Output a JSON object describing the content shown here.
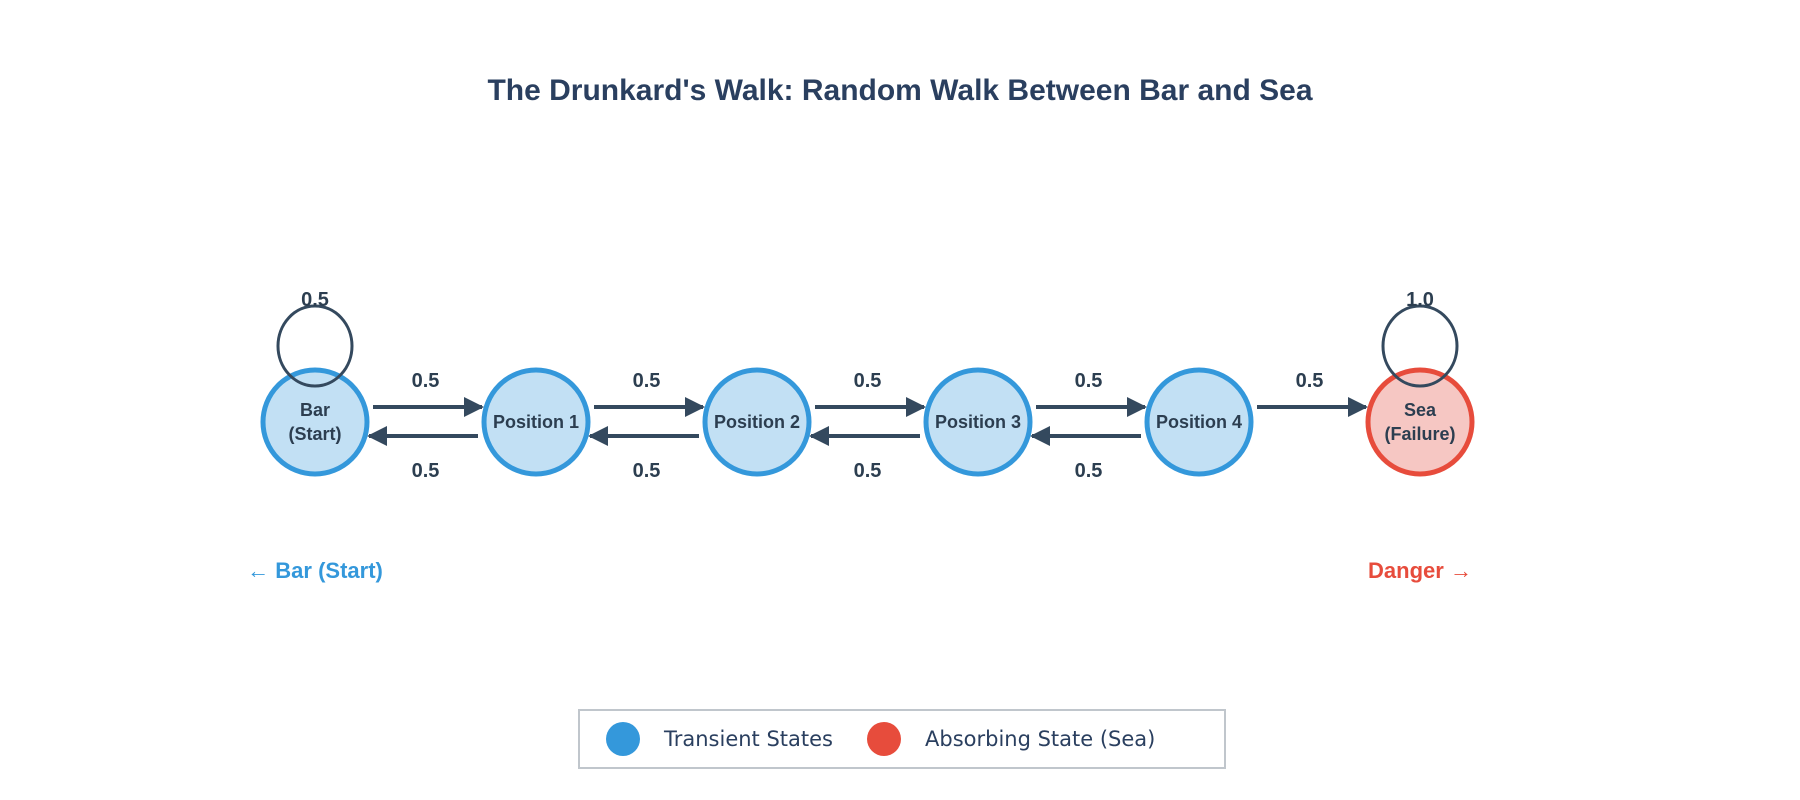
{
  "title": "The Drunkard's Walk: Random Walk Between Bar and Sea",
  "colors": {
    "transient_fill": "#c2e0f4",
    "transient_stroke": "#3498db",
    "absorbing_fill": "#f6c7c3",
    "absorbing_stroke": "#e74c3c",
    "edge": "#34495e",
    "text": "#2c3e50"
  },
  "nodes": [
    {
      "id": "bar",
      "lines": [
        "Bar",
        "(Start)"
      ],
      "type": "transient"
    },
    {
      "id": "p1",
      "lines": [
        "Position 1"
      ],
      "type": "transient"
    },
    {
      "id": "p2",
      "lines": [
        "Position 2"
      ],
      "type": "transient"
    },
    {
      "id": "p3",
      "lines": [
        "Position 3"
      ],
      "type": "transient"
    },
    {
      "id": "p4",
      "lines": [
        "Position 4"
      ],
      "type": "transient"
    },
    {
      "id": "sea",
      "lines": [
        "Sea",
        "(Failure)"
      ],
      "type": "absorbing"
    }
  ],
  "edges": [
    {
      "from": "bar",
      "to": "bar",
      "label": "0.5"
    },
    {
      "from": "bar",
      "to": "p1",
      "label": "0.5"
    },
    {
      "from": "p1",
      "to": "bar",
      "label": "0.5"
    },
    {
      "from": "p1",
      "to": "p2",
      "label": "0.5"
    },
    {
      "from": "p2",
      "to": "p1",
      "label": "0.5"
    },
    {
      "from": "p2",
      "to": "p3",
      "label": "0.5"
    },
    {
      "from": "p3",
      "to": "p2",
      "label": "0.5"
    },
    {
      "from": "p3",
      "to": "p4",
      "label": "0.5"
    },
    {
      "from": "p4",
      "to": "p3",
      "label": "0.5"
    },
    {
      "from": "p4",
      "to": "sea",
      "label": "0.5"
    },
    {
      "from": "sea",
      "to": "sea",
      "label": "1.0"
    }
  ],
  "annotations": {
    "left": "← Bar (Start)",
    "right": "Danger →"
  },
  "legend": [
    {
      "label": "Transient States",
      "color": "#3498db"
    },
    {
      "label": "Absorbing State (Sea)",
      "color": "#e74c3c"
    }
  ]
}
